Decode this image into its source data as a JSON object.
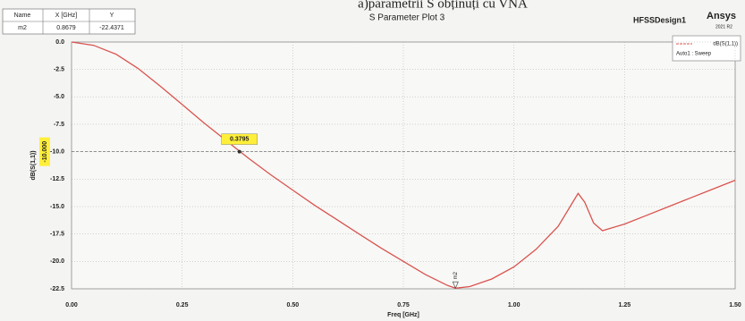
{
  "chart_data": {
    "type": "line",
    "caption": "a)parametrii S obținuți cu VNA",
    "title": "S Parameter Plot 3",
    "design_name": "HFSSDesign1",
    "brand": "Ansys",
    "version": "2021 R2",
    "x_label": "Freq [GHz]",
    "y_label": "dB(S(1,1))",
    "x": [
      0,
      0.05,
      0.1,
      0.15,
      0.2,
      0.25,
      0.3,
      0.35,
      0.4,
      0.45,
      0.5,
      0.55,
      0.6,
      0.65,
      0.7,
      0.75,
      0.8,
      0.85,
      0.8679,
      0.9,
      0.95,
      1.0,
      1.05,
      1.1,
      1.13,
      1.145,
      1.16,
      1.18,
      1.2,
      1.25,
      1.3,
      1.35,
      1.4,
      1.45,
      1.5
    ],
    "series": [
      {
        "name": "dB(S(1,1))",
        "sweep": "Auto1 : Sweep",
        "color": "#d9534f",
        "values": [
          0,
          -0.3,
          -1.1,
          -2.4,
          -4.0,
          -5.7,
          -7.4,
          -9.0,
          -10.6,
          -12.1,
          -13.5,
          -14.9,
          -16.2,
          -17.5,
          -18.8,
          -20.0,
          -21.2,
          -22.2,
          -22.44,
          -22.3,
          -21.6,
          -20.5,
          -18.9,
          -16.8,
          -14.8,
          -13.8,
          -14.6,
          -16.5,
          -17.2,
          -16.6,
          -15.8,
          -15.0,
          -14.2,
          -13.4,
          -12.6
        ]
      }
    ],
    "xlim": [
      0,
      1.5
    ],
    "ylim": [
      -22.5,
      0
    ],
    "xticks": [
      {
        "value": 0,
        "label": "0.00"
      },
      {
        "value": 0.25,
        "label": "0.25"
      },
      {
        "value": 0.5,
        "label": "0.50"
      },
      {
        "value": 0.75,
        "label": "0.75"
      },
      {
        "value": 1.0,
        "label": "1.00"
      },
      {
        "value": 1.25,
        "label": "1.25"
      },
      {
        "value": 1.5,
        "label": "1.50"
      }
    ],
    "yticks": [
      {
        "value": 0,
        "label": "0.0"
      },
      {
        "value": -2.5,
        "label": "-2.5"
      },
      {
        "value": -5,
        "label": "-5.0"
      },
      {
        "value": -7.5,
        "label": "-7.5"
      },
      {
        "value": -10,
        "label": "-10.0"
      },
      {
        "value": -12.5,
        "label": "-12.5"
      },
      {
        "value": -15,
        "label": "-15.0"
      },
      {
        "value": -17.5,
        "label": "-17.5"
      },
      {
        "value": -20,
        "label": "-20.0"
      },
      {
        "value": -22.5,
        "label": "-22.5"
      }
    ],
    "grid": true,
    "hline": {
      "value": -10,
      "label": "-10.000",
      "crossing_x": 0.3795
    },
    "marker_table": {
      "headers": [
        "Name",
        "X [GHz]",
        "Y"
      ],
      "markers": [
        {
          "name": "m2",
          "x": 0.8679,
          "y": -22.4371
        }
      ]
    }
  }
}
